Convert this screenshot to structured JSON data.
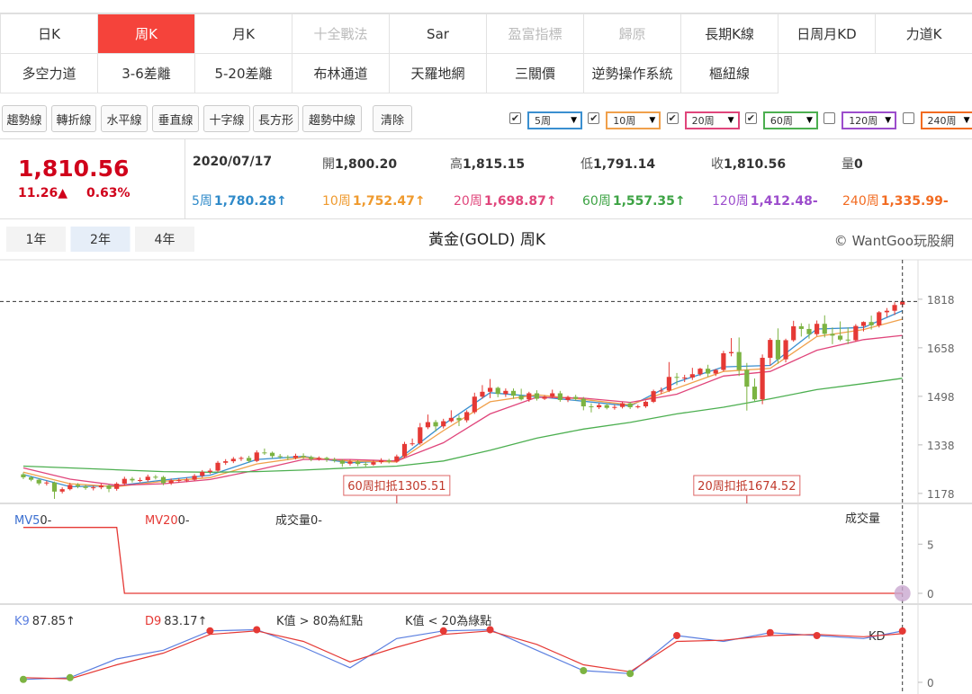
{
  "tabs": [
    [
      "日K",
      "周K",
      "月K",
      "十全戰法",
      "Sar",
      "盈富指標",
      "歸原",
      "長期K線",
      "日周月KD",
      "力道K"
    ],
    [
      "多空力道",
      "3-6差離",
      "5-20差離",
      "布林通道",
      "天羅地網",
      "三關價",
      "逆勢操作系統",
      "樞紐線"
    ]
  ],
  "active_tab": [
    0,
    1
  ],
  "disabled_tabs": [
    3,
    5,
    6
  ],
  "tools": [
    "趨勢線",
    "轉折線",
    "水平線",
    "垂直線",
    "十字線",
    "長方形",
    "趨勢中線"
  ],
  "clear": "清除",
  "ma_toggles": [
    {
      "label": "5周",
      "color": "#3a8fd0",
      "checked": true
    },
    {
      "label": "10周",
      "color": "#f0a04b",
      "checked": true
    },
    {
      "label": "20周",
      "color": "#e0457b",
      "checked": true
    },
    {
      "label": "60周",
      "color": "#4caf50",
      "checked": true
    },
    {
      "label": "120周",
      "color": "#9c4dcc",
      "checked": false
    },
    {
      "label": "240周",
      "color": "#f26b21",
      "checked": false
    }
  ],
  "quote": {
    "price": "1,810.56",
    "change": "11.26▲",
    "change_pct": "0.63%",
    "date": "2020/07/17",
    "fields": [
      {
        "label": "開",
        "value": "1,800.20"
      },
      {
        "label": "高",
        "value": "1,815.15"
      },
      {
        "label": "低",
        "value": "1,791.14"
      },
      {
        "label": "收",
        "value": "1,810.56"
      },
      {
        "label": "量",
        "value": "0"
      }
    ],
    "ma": [
      {
        "label": "5周",
        "value": "1,780.28↑",
        "color": "#2f8ac9"
      },
      {
        "label": "10周",
        "value": "1,752.47↑",
        "color": "#ef9a2e"
      },
      {
        "label": "20周",
        "value": "1,698.87↑",
        "color": "#e0457b"
      },
      {
        "label": "60周",
        "value": "1,557.35↑",
        "color": "#3da344"
      },
      {
        "label": "120周",
        "value": "1,412.48-",
        "color": "#9c4dcc"
      },
      {
        "label": "240周",
        "value": "1,335.99-",
        "color": "#f26b21"
      }
    ]
  },
  "range_buttons": [
    "1年",
    "2年",
    "4年"
  ],
  "active_range": 1,
  "chart_data": [
    {
      "type": "candlestick",
      "title": "黃金(GOLD) 周K",
      "source": "© WantGoo玩股網",
      "up_color": "#e53935",
      "down_color": "#7cb342",
      "xlim": [
        -3,
        115
      ],
      "ylim": [
        1148,
        1948
      ],
      "yticks": [
        1178,
        1338,
        1498,
        1658,
        1818
      ],
      "ohlc": [
        [
          1241,
          1247,
          1225,
          1231
        ],
        [
          1231,
          1236,
          1218,
          1223
        ],
        [
          1223,
          1228,
          1205,
          1211
        ],
        [
          1211,
          1220,
          1204,
          1214
        ],
        [
          1214,
          1217,
          1160,
          1184
        ],
        [
          1184,
          1198,
          1178,
          1192
        ],
        [
          1192,
          1213,
          1188,
          1206
        ],
        [
          1206,
          1212,
          1195,
          1201
        ],
        [
          1201,
          1207,
          1190,
          1196
        ],
        [
          1196,
          1204,
          1188,
          1198
        ],
        [
          1198,
          1210,
          1192,
          1204
        ],
        [
          1204,
          1208,
          1182,
          1193
        ],
        [
          1193,
          1215,
          1187,
          1210
        ],
        [
          1210,
          1233,
          1204,
          1226
        ],
        [
          1226,
          1232,
          1214,
          1221
        ],
        [
          1221,
          1230,
          1215,
          1222
        ],
        [
          1222,
          1240,
          1216,
          1233
        ],
        [
          1233,
          1239,
          1224,
          1232
        ],
        [
          1232,
          1236,
          1205,
          1212
        ],
        [
          1212,
          1227,
          1206,
          1221
        ],
        [
          1221,
          1228,
          1213,
          1222
        ],
        [
          1222,
          1230,
          1215,
          1223
        ],
        [
          1223,
          1242,
          1219,
          1236
        ],
        [
          1236,
          1255,
          1230,
          1249
        ],
        [
          1249,
          1260,
          1242,
          1253
        ],
        [
          1253,
          1285,
          1248,
          1279
        ],
        [
          1279,
          1291,
          1272,
          1284
        ],
        [
          1284,
          1298,
          1278,
          1292
        ],
        [
          1292,
          1300,
          1285,
          1295
        ],
        [
          1295,
          1302,
          1279,
          1285
        ],
        [
          1285,
          1320,
          1281,
          1313
        ],
        [
          1313,
          1326,
          1305,
          1312
        ],
        [
          1312,
          1316,
          1294,
          1301
        ],
        [
          1301,
          1308,
          1292,
          1298
        ],
        [
          1298,
          1304,
          1288,
          1295
        ],
        [
          1295,
          1309,
          1290,
          1302
        ],
        [
          1302,
          1310,
          1292,
          1298
        ],
        [
          1298,
          1303,
          1284,
          1291
        ],
        [
          1291,
          1300,
          1286,
          1295
        ],
        [
          1295,
          1299,
          1282,
          1290
        ],
        [
          1290,
          1296,
          1280,
          1286
        ],
        [
          1286,
          1291,
          1266,
          1276
        ],
        [
          1276,
          1289,
          1270,
          1283
        ],
        [
          1283,
          1288,
          1268,
          1275
        ],
        [
          1275,
          1282,
          1266,
          1273
        ],
        [
          1273,
          1288,
          1269,
          1281
        ],
        [
          1281,
          1294,
          1276,
          1287
        ],
        [
          1287,
          1292,
          1277,
          1283
        ],
        [
          1283,
          1306,
          1279,
          1300
        ],
        [
          1300,
          1348,
          1296,
          1341
        ],
        [
          1341,
          1359,
          1335,
          1343
        ],
        [
          1343,
          1410,
          1338,
          1396
        ],
        [
          1396,
          1438,
          1390,
          1413
        ],
        [
          1413,
          1420,
          1382,
          1399
        ],
        [
          1399,
          1424,
          1392,
          1416
        ],
        [
          1416,
          1452,
          1412,
          1427
        ],
        [
          1427,
          1436,
          1400,
          1419
        ],
        [
          1419,
          1452,
          1412,
          1446
        ],
        [
          1446,
          1510,
          1440,
          1497
        ],
        [
          1497,
          1535,
          1490,
          1513
        ],
        [
          1513,
          1555,
          1492,
          1526
        ],
        [
          1526,
          1530,
          1495,
          1506
        ],
        [
          1506,
          1524,
          1496,
          1516
        ],
        [
          1516,
          1524,
          1490,
          1500
        ],
        [
          1500,
          1523,
          1484,
          1488
        ],
        [
          1488,
          1513,
          1480,
          1508
        ],
        [
          1508,
          1518,
          1484,
          1490
        ],
        [
          1490,
          1502,
          1486,
          1497
        ],
        [
          1497,
          1520,
          1492,
          1508
        ],
        [
          1508,
          1516,
          1480,
          1486
        ],
        [
          1486,
          1500,
          1479,
          1496
        ],
        [
          1496,
          1503,
          1484,
          1490
        ],
        [
          1490,
          1496,
          1452,
          1465
        ],
        [
          1465,
          1475,
          1445,
          1462
        ],
        [
          1462,
          1476,
          1456,
          1469
        ],
        [
          1469,
          1474,
          1455,
          1460
        ],
        [
          1460,
          1470,
          1454,
          1463
        ],
        [
          1463,
          1480,
          1458,
          1475
        ],
        [
          1475,
          1480,
          1456,
          1462
        ],
        [
          1462,
          1470,
          1458,
          1465
        ],
        [
          1465,
          1484,
          1460,
          1480
        ],
        [
          1480,
          1520,
          1476,
          1515
        ],
        [
          1515,
          1527,
          1505,
          1517
        ],
        [
          1517,
          1611,
          1512,
          1562
        ],
        [
          1562,
          1575,
          1535,
          1559
        ],
        [
          1559,
          1569,
          1545,
          1560
        ],
        [
          1560,
          1592,
          1552,
          1571
        ],
        [
          1571,
          1592,
          1565,
          1589
        ],
        [
          1589,
          1602,
          1562,
          1573
        ],
        [
          1573,
          1588,
          1565,
          1585
        ],
        [
          1585,
          1648,
          1580,
          1640
        ],
        [
          1640,
          1690,
          1630,
          1644
        ],
        [
          1644,
          1692,
          1565,
          1585
        ],
        [
          1585,
          1608,
          1451,
          1530
        ],
        [
          1530,
          1557,
          1482,
          1488
        ],
        [
          1488,
          1636,
          1472,
          1625
        ],
        [
          1625,
          1690,
          1600,
          1684
        ],
        [
          1684,
          1722,
          1605,
          1620
        ],
        [
          1620,
          1688,
          1610,
          1683
        ],
        [
          1683,
          1747,
          1678,
          1729
        ],
        [
          1729,
          1739,
          1695,
          1720
        ],
        [
          1720,
          1737,
          1688,
          1703
        ],
        [
          1703,
          1748,
          1697,
          1737
        ],
        [
          1737,
          1765,
          1692,
          1704
        ],
        [
          1704,
          1725,
          1670,
          1698
        ],
        [
          1698,
          1745,
          1680,
          1685
        ],
        [
          1685,
          1725,
          1670,
          1683
        ],
        [
          1683,
          1736,
          1679,
          1730
        ],
        [
          1730,
          1745,
          1712,
          1743
        ],
        [
          1743,
          1764,
          1718,
          1732
        ],
        [
          1732,
          1779,
          1725,
          1775
        ],
        [
          1775,
          1789,
          1759,
          1780
        ],
        [
          1780,
          1808,
          1766,
          1799
        ],
        [
          1800.2,
          1815.15,
          1791.14,
          1810.56
        ]
      ],
      "ma_lines": [
        {
          "color": "#3a8fd0",
          "x": [
            0,
            6,
            12,
            18,
            24,
            30,
            36,
            42,
            48,
            54,
            60,
            66,
            72,
            78,
            84,
            90,
            96,
            102,
            108,
            113
          ],
          "values": [
            1240,
            1200,
            1203,
            1222,
            1238,
            1290,
            1300,
            1279,
            1286,
            1405,
            1510,
            1497,
            1482,
            1466,
            1545,
            1595,
            1600,
            1720,
            1725,
            1780.28
          ]
        },
        {
          "color": "#f0a04b",
          "x": [
            0,
            6,
            12,
            18,
            24,
            30,
            36,
            42,
            48,
            54,
            60,
            66,
            72,
            78,
            84,
            90,
            96,
            102,
            108,
            113
          ],
          "values": [
            1248,
            1210,
            1200,
            1218,
            1230,
            1275,
            1297,
            1285,
            1282,
            1385,
            1480,
            1503,
            1488,
            1470,
            1525,
            1580,
            1590,
            1695,
            1718,
            1752.47
          ]
        },
        {
          "color": "#e0457b",
          "x": [
            0,
            6,
            12,
            18,
            24,
            30,
            36,
            42,
            48,
            54,
            60,
            66,
            72,
            78,
            84,
            90,
            96,
            102,
            108,
            113
          ],
          "values": [
            1262,
            1225,
            1205,
            1210,
            1224,
            1255,
            1290,
            1290,
            1285,
            1345,
            1440,
            1495,
            1492,
            1478,
            1505,
            1565,
            1580,
            1650,
            1685,
            1698.87
          ]
        },
        {
          "color": "#4caf50",
          "x": [
            0,
            6,
            12,
            18,
            24,
            30,
            36,
            42,
            48,
            54,
            60,
            66,
            72,
            78,
            84,
            90,
            96,
            102,
            108,
            113
          ],
          "values": [
            1268,
            1262,
            1256,
            1250,
            1248,
            1250,
            1255,
            1262,
            1268,
            1285,
            1320,
            1360,
            1390,
            1412,
            1440,
            1462,
            1490,
            1520,
            1540,
            1557.35
          ]
        }
      ],
      "annotations": [
        {
          "text": "60周扣抵1305.51",
          "x": 48
        },
        {
          "text": "20周扣抵1674.52",
          "x": 93
        }
      ]
    },
    {
      "type": "line",
      "title": "成交量",
      "indicators": [
        {
          "name": "MV5",
          "value": "0-",
          "color": "#3a6fd0"
        },
        {
          "name": "MV20",
          "value": "0-",
          "color": "#e53935"
        },
        {
          "name": "成交量",
          "value": "0-",
          "color": "#333333"
        }
      ],
      "xlim": [
        -3,
        115
      ],
      "ylim": [
        0,
        8.5
      ],
      "yticks": [
        0,
        5
      ],
      "series": [
        {
          "name": "MV20",
          "color": "#e53935",
          "x": [
            0,
            12,
            13,
            113
          ],
          "values": [
            6.7,
            6.7,
            0,
            0
          ]
        }
      ]
    },
    {
      "type": "line",
      "label": "KD",
      "notes": [
        "K值 > 80為紅點",
        "K值 < 20為綠點"
      ],
      "high_dot": 80,
      "low_dot": 20,
      "high_color": "#e53935",
      "low_color": "#7cb342",
      "xlim": [
        -3,
        115
      ],
      "ylim": [
        0,
        100
      ],
      "yticks": [
        0
      ],
      "series": [
        {
          "name": "K9",
          "value": "87.85↑",
          "color": "#5b7fe0",
          "x": [
            0,
            6,
            12,
            18,
            24,
            30,
            36,
            42,
            48,
            54,
            60,
            66,
            72,
            78,
            84,
            90,
            96,
            102,
            108,
            113
          ],
          "values": [
            5,
            8,
            40,
            55,
            88,
            90,
            60,
            25,
            75,
            88,
            90,
            55,
            20,
            15,
            80,
            70,
            85,
            80,
            75,
            87.85
          ]
        },
        {
          "name": "D9",
          "value": "83.17↑",
          "color": "#e53935",
          "x": [
            0,
            6,
            12,
            18,
            24,
            30,
            36,
            42,
            48,
            54,
            60,
            66,
            72,
            78,
            84,
            90,
            96,
            102,
            108,
            113
          ],
          "values": [
            8,
            6,
            30,
            50,
            82,
            88,
            70,
            35,
            60,
            82,
            88,
            65,
            30,
            18,
            70,
            72,
            80,
            82,
            78,
            83.17
          ]
        }
      ]
    }
  ]
}
